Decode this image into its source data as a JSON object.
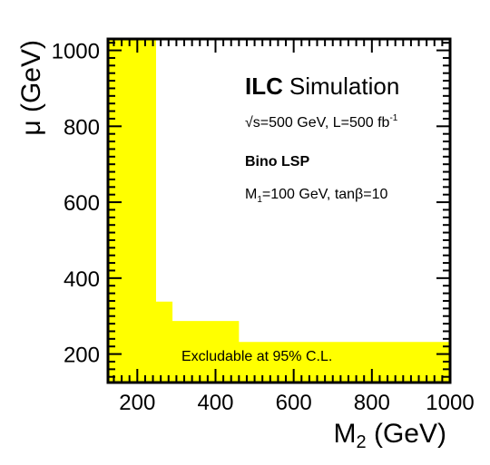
{
  "chart_data": {
    "type": "area",
    "title": "",
    "xlabel": "M",
    "xlabel_sub": "2",
    "xlabel_unit": " (GeV)",
    "ylabel": "μ (GeV)",
    "xlim": [
      125,
      1000
    ],
    "ylim": [
      125,
      1030
    ],
    "x_ticks": [
      200,
      400,
      600,
      800,
      1000
    ],
    "y_ticks": [
      200,
      400,
      600,
      800,
      1000
    ],
    "x_tick_labels": [
      "200",
      "400",
      "600",
      "800",
      "1000"
    ],
    "y_tick_labels": [
      "200",
      "400",
      "600",
      "800",
      "1000"
    ],
    "grid": false,
    "fill_color": "#ffff00",
    "region": {
      "name": "Excludable at 95% C.L.",
      "boundary": [
        {
          "M2": 248,
          "mu": 1030
        },
        {
          "M2": 248,
          "mu": 338
        },
        {
          "M2": 290,
          "mu": 338
        },
        {
          "M2": 290,
          "mu": 287
        },
        {
          "M2": 460,
          "mu": 287
        },
        {
          "M2": 460,
          "mu": 232
        },
        {
          "M2": 1000,
          "mu": 232
        }
      ]
    },
    "annotations": {
      "experiment": "ILC",
      "simulation": "Simulation",
      "energy_prefix": "√s=500 GeV, L=500 fb",
      "energy_sup": "-1",
      "scenario": "Bino LSP",
      "params_prefix": "M",
      "params_sub": "1",
      "params_rest": "=100 GeV, tanβ=10"
    }
  }
}
